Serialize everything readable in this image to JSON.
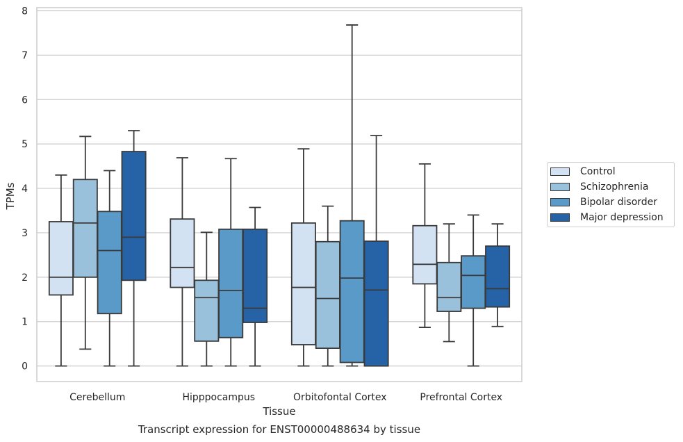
{
  "chart_data": {
    "type": "box",
    "title": "Transcript expression for ENST00000488634 by tissue",
    "xlabel": "Tissue",
    "ylabel": "TPMs",
    "ylim": [
      -0.35,
      8.07
    ],
    "yticks": [
      0,
      1,
      2,
      3,
      4,
      5,
      6,
      7,
      8
    ],
    "grid": true,
    "legend_position": "right",
    "categories": [
      "Cerebellum",
      "Hipppocampus",
      "Orbitofontal Cortex",
      "Prefrontal Cortex"
    ],
    "series": [
      {
        "name": "Control",
        "color": "#d3e2f2",
        "boxes": [
          {
            "whislo": 0.0,
            "q1": 1.6,
            "med": 2.0,
            "q3": 3.25,
            "whishi": 4.3
          },
          {
            "whislo": 0.0,
            "q1": 1.77,
            "med": 2.22,
            "q3": 3.31,
            "whishi": 4.69
          },
          {
            "whislo": 0.0,
            "q1": 0.48,
            "med": 1.77,
            "q3": 3.22,
            "whishi": 4.89
          },
          {
            "whislo": 0.87,
            "q1": 1.85,
            "med": 2.29,
            "q3": 3.16,
            "whishi": 4.55
          }
        ]
      },
      {
        "name": "Schizophrenia",
        "color": "#9ac1dc",
        "boxes": [
          {
            "whislo": 0.38,
            "q1": 2.0,
            "med": 3.22,
            "q3": 4.2,
            "whishi": 5.17
          },
          {
            "whislo": 0.0,
            "q1": 0.56,
            "med": 1.54,
            "q3": 1.93,
            "whishi": 3.01
          },
          {
            "whislo": 0.0,
            "q1": 0.4,
            "med": 1.52,
            "q3": 2.8,
            "whishi": 3.6
          },
          {
            "whislo": 0.55,
            "q1": 1.23,
            "med": 1.54,
            "q3": 2.33,
            "whishi": 3.2
          }
        ]
      },
      {
        "name": "Bipolar disorder",
        "color": "#5a9ac8",
        "boxes": [
          {
            "whislo": 0.0,
            "q1": 1.18,
            "med": 2.6,
            "q3": 3.48,
            "whishi": 4.4
          },
          {
            "whislo": 0.0,
            "q1": 0.64,
            "med": 1.7,
            "q3": 3.08,
            "whishi": 4.67
          },
          {
            "whislo": 0.0,
            "q1": 0.08,
            "med": 1.98,
            "q3": 3.27,
            "whishi": 7.68
          },
          {
            "whislo": 0.0,
            "q1": 1.3,
            "med": 2.04,
            "q3": 2.48,
            "whishi": 3.4
          }
        ]
      },
      {
        "name": "Major depression",
        "color": "#2563a6",
        "boxes": [
          {
            "whislo": 0.0,
            "q1": 1.93,
            "med": 2.9,
            "q3": 4.83,
            "whishi": 5.3
          },
          {
            "whislo": 0.0,
            "q1": 0.98,
            "med": 1.3,
            "q3": 3.08,
            "whishi": 3.57
          },
          {
            "whislo": 0.0,
            "q1": 0.0,
            "med": 1.71,
            "q3": 2.81,
            "whishi": 5.19
          },
          {
            "whislo": 0.89,
            "q1": 1.33,
            "med": 1.74,
            "q3": 2.7,
            "whishi": 3.2
          }
        ]
      }
    ]
  }
}
